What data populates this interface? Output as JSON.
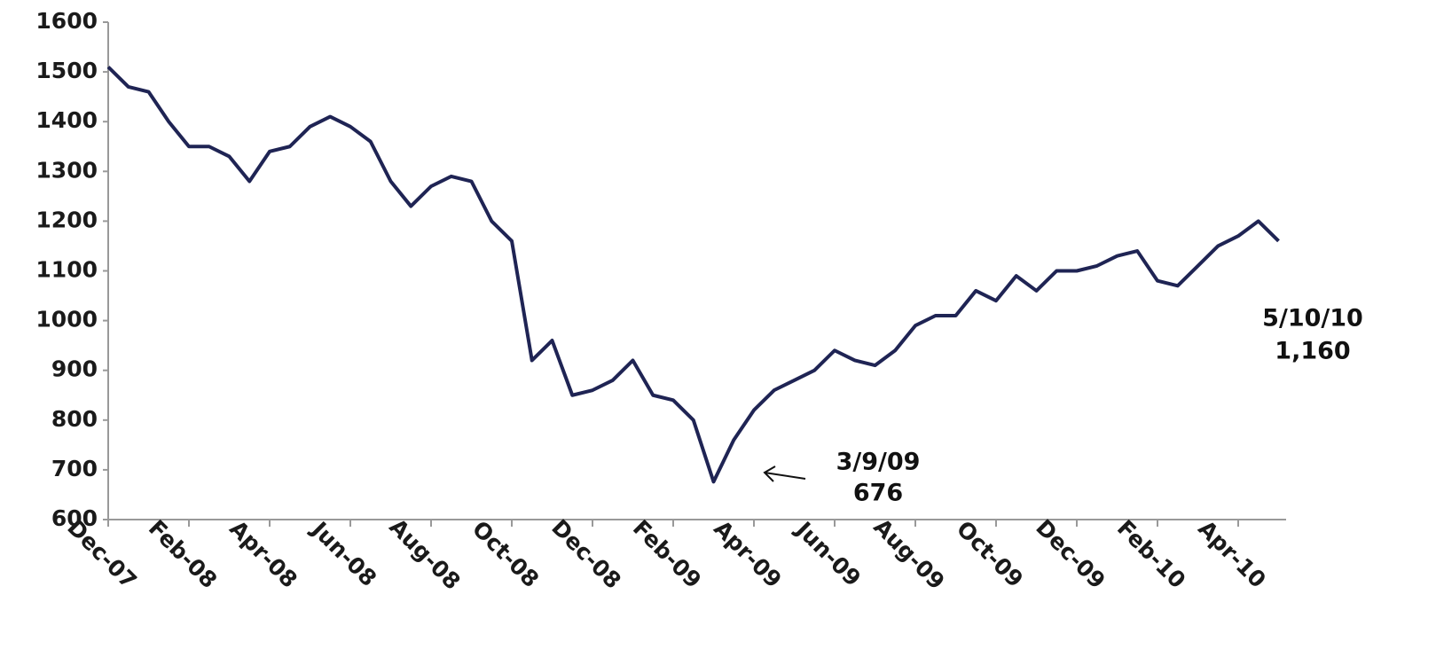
{
  "chart_data": {
    "type": "line",
    "categories": [
      "Dec-07",
      null,
      null,
      null,
      "Feb-08",
      null,
      null,
      null,
      "Apr-08",
      null,
      null,
      null,
      "Jun-08",
      null,
      null,
      null,
      "Aug-08",
      null,
      null,
      null,
      "Oct-08",
      null,
      null,
      null,
      "Dec-08",
      null,
      null,
      null,
      "Feb-09",
      null,
      null,
      null,
      "Apr-09",
      null,
      null,
      null,
      "Jun-09",
      null,
      null,
      null,
      "Aug-09",
      null,
      null,
      null,
      "Oct-09",
      null,
      null,
      null,
      "Dec-09",
      null,
      null,
      null,
      "Feb-10",
      null,
      null,
      null,
      "Apr-10",
      null,
      null
    ],
    "values": [
      1510,
      1470,
      1460,
      1400,
      1350,
      1350,
      1330,
      1280,
      1340,
      1350,
      1390,
      1410,
      1390,
      1360,
      1280,
      1230,
      1270,
      1290,
      1280,
      1200,
      1160,
      920,
      960,
      850,
      860,
      880,
      920,
      850,
      840,
      800,
      676,
      760,
      820,
      860,
      880,
      900,
      940,
      920,
      910,
      940,
      990,
      1010,
      1010,
      1060,
      1040,
      1090,
      1060,
      1100,
      1100,
      1110,
      1130,
      1140,
      1080,
      1070,
      1110,
      1150,
      1170,
      1200,
      1160
    ],
    "color": "#1f2454",
    "ylim": [
      600,
      1600
    ],
    "yticks": [
      600,
      700,
      800,
      900,
      1000,
      1100,
      1200,
      1300,
      1400,
      1500,
      1600
    ],
    "grid": false,
    "annotations": [
      {
        "date": "3/9/09",
        "label": "676"
      },
      {
        "date": "5/10/10",
        "label": "1,160"
      }
    ]
  }
}
